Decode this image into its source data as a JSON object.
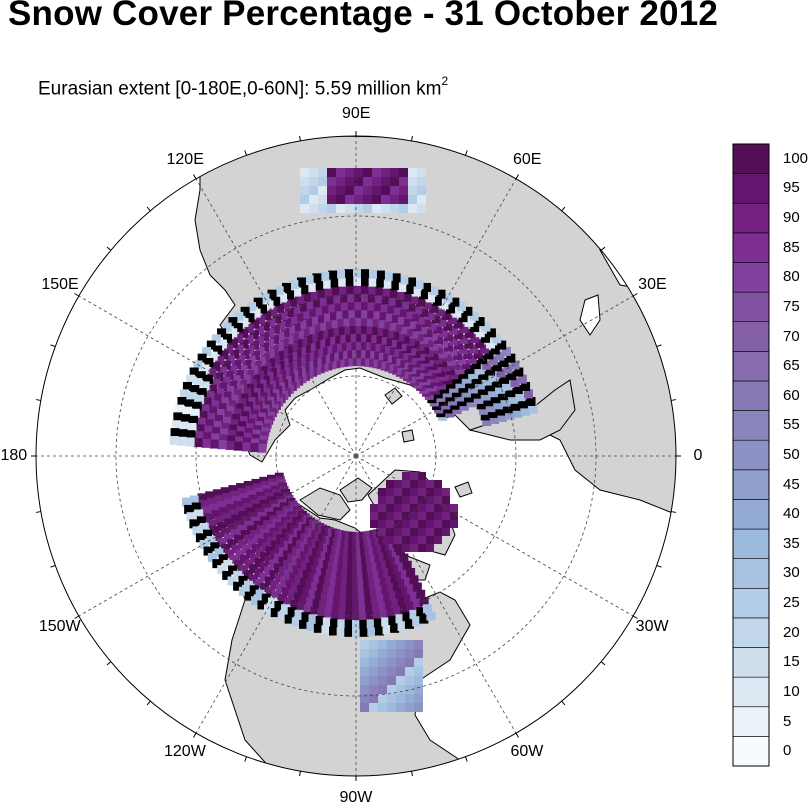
{
  "title": "Snow Cover Percentage - 31 October 2012",
  "subtitle": {
    "text": "Eurasian extent [0-180E,0-60N]:  5.59 million km",
    "superscript": "2"
  },
  "map": {
    "projection": "north-polar-stereographic",
    "land_color": "#d3d3d3",
    "ocean_color": "#ffffff",
    "longitude_labels": [
      "90E",
      "60E",
      "30E",
      "0",
      "30W",
      "60W",
      "90W",
      "120W",
      "150W",
      "180",
      "150E",
      "120E"
    ]
  },
  "colorbar": {
    "labels": [
      "0",
      "5",
      "10",
      "15",
      "20",
      "25",
      "30",
      "35",
      "40",
      "45",
      "50",
      "55",
      "60",
      "65",
      "70",
      "75",
      "80",
      "85",
      "90",
      "95",
      "100"
    ],
    "colors": [
      "#f7fbfd",
      "#e9f2f8",
      "#dde8f3",
      "#cfdfee",
      "#c2d6ea",
      "#b4cde6",
      "#a7c3e1",
      "#9bbadc",
      "#94acd3",
      "#8fa0cb",
      "#8c93c4",
      "#8a85bd",
      "#8779b5",
      "#866cae",
      "#8460a8",
      "#8351a2",
      "#82419c",
      "#7e2f93",
      "#72217f",
      "#64156d",
      "#520f57"
    ]
  }
}
